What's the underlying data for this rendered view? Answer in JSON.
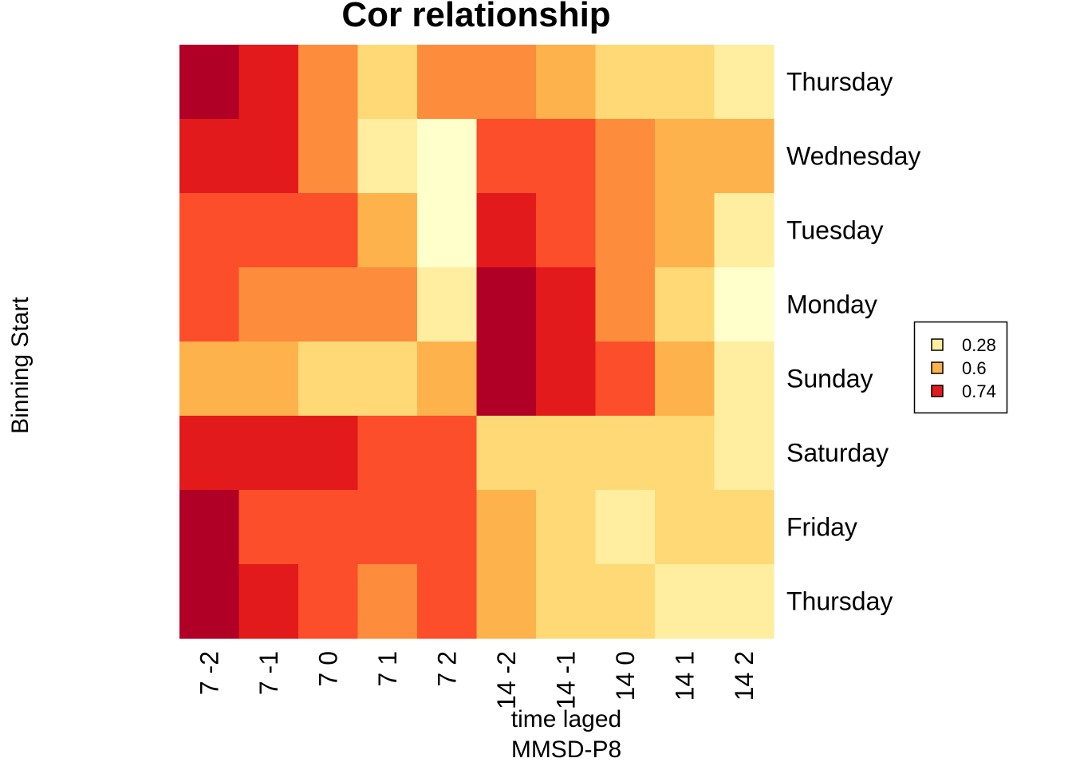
{
  "chart_data": {
    "type": "heatmap",
    "title": "Cor relationship",
    "xlabel": "time laged",
    "xlabel2": "MMSD-P8",
    "ylabel": "Binning Start",
    "x_categories": [
      "7 -2",
      "7 -1",
      "7 0",
      "7 1",
      "7 2",
      "14 -2",
      "14 -1",
      "14 0",
      "14 1",
      "14 2"
    ],
    "y_categories": [
      "Thursday",
      "Wednesday",
      "Tuesday",
      "Monday",
      "Sunday",
      "Saturday",
      "Friday",
      "Thursday"
    ],
    "color_levels": [
      "#FFFFCC",
      "#FFEDA0",
      "#FED976",
      "#FEB24C",
      "#FD8D3C",
      "#FC4E2A",
      "#E31A1C",
      "#B10026"
    ],
    "level_matrix": [
      [
        7,
        6,
        4,
        2,
        4,
        4,
        3,
        2,
        2,
        1
      ],
      [
        6,
        6,
        4,
        1,
        0,
        5,
        5,
        4,
        3,
        3
      ],
      [
        5,
        5,
        5,
        3,
        0,
        6,
        5,
        4,
        3,
        1
      ],
      [
        5,
        4,
        4,
        4,
        1,
        7,
        6,
        4,
        2,
        0
      ],
      [
        3,
        3,
        2,
        2,
        3,
        7,
        6,
        5,
        3,
        1
      ],
      [
        6,
        6,
        6,
        5,
        5,
        2,
        2,
        2,
        2,
        1
      ],
      [
        7,
        5,
        5,
        5,
        5,
        3,
        2,
        1,
        2,
        2
      ],
      [
        7,
        6,
        5,
        4,
        5,
        3,
        2,
        2,
        1,
        1
      ]
    ],
    "legend": {
      "position": "right",
      "entries": [
        {
          "label": "0.28",
          "color": "#FFEDA0"
        },
        {
          "label": "0.6",
          "color": "#FEB24C"
        },
        {
          "label": "0.74",
          "color": "#E31A1C"
        }
      ]
    },
    "grid": false
  }
}
